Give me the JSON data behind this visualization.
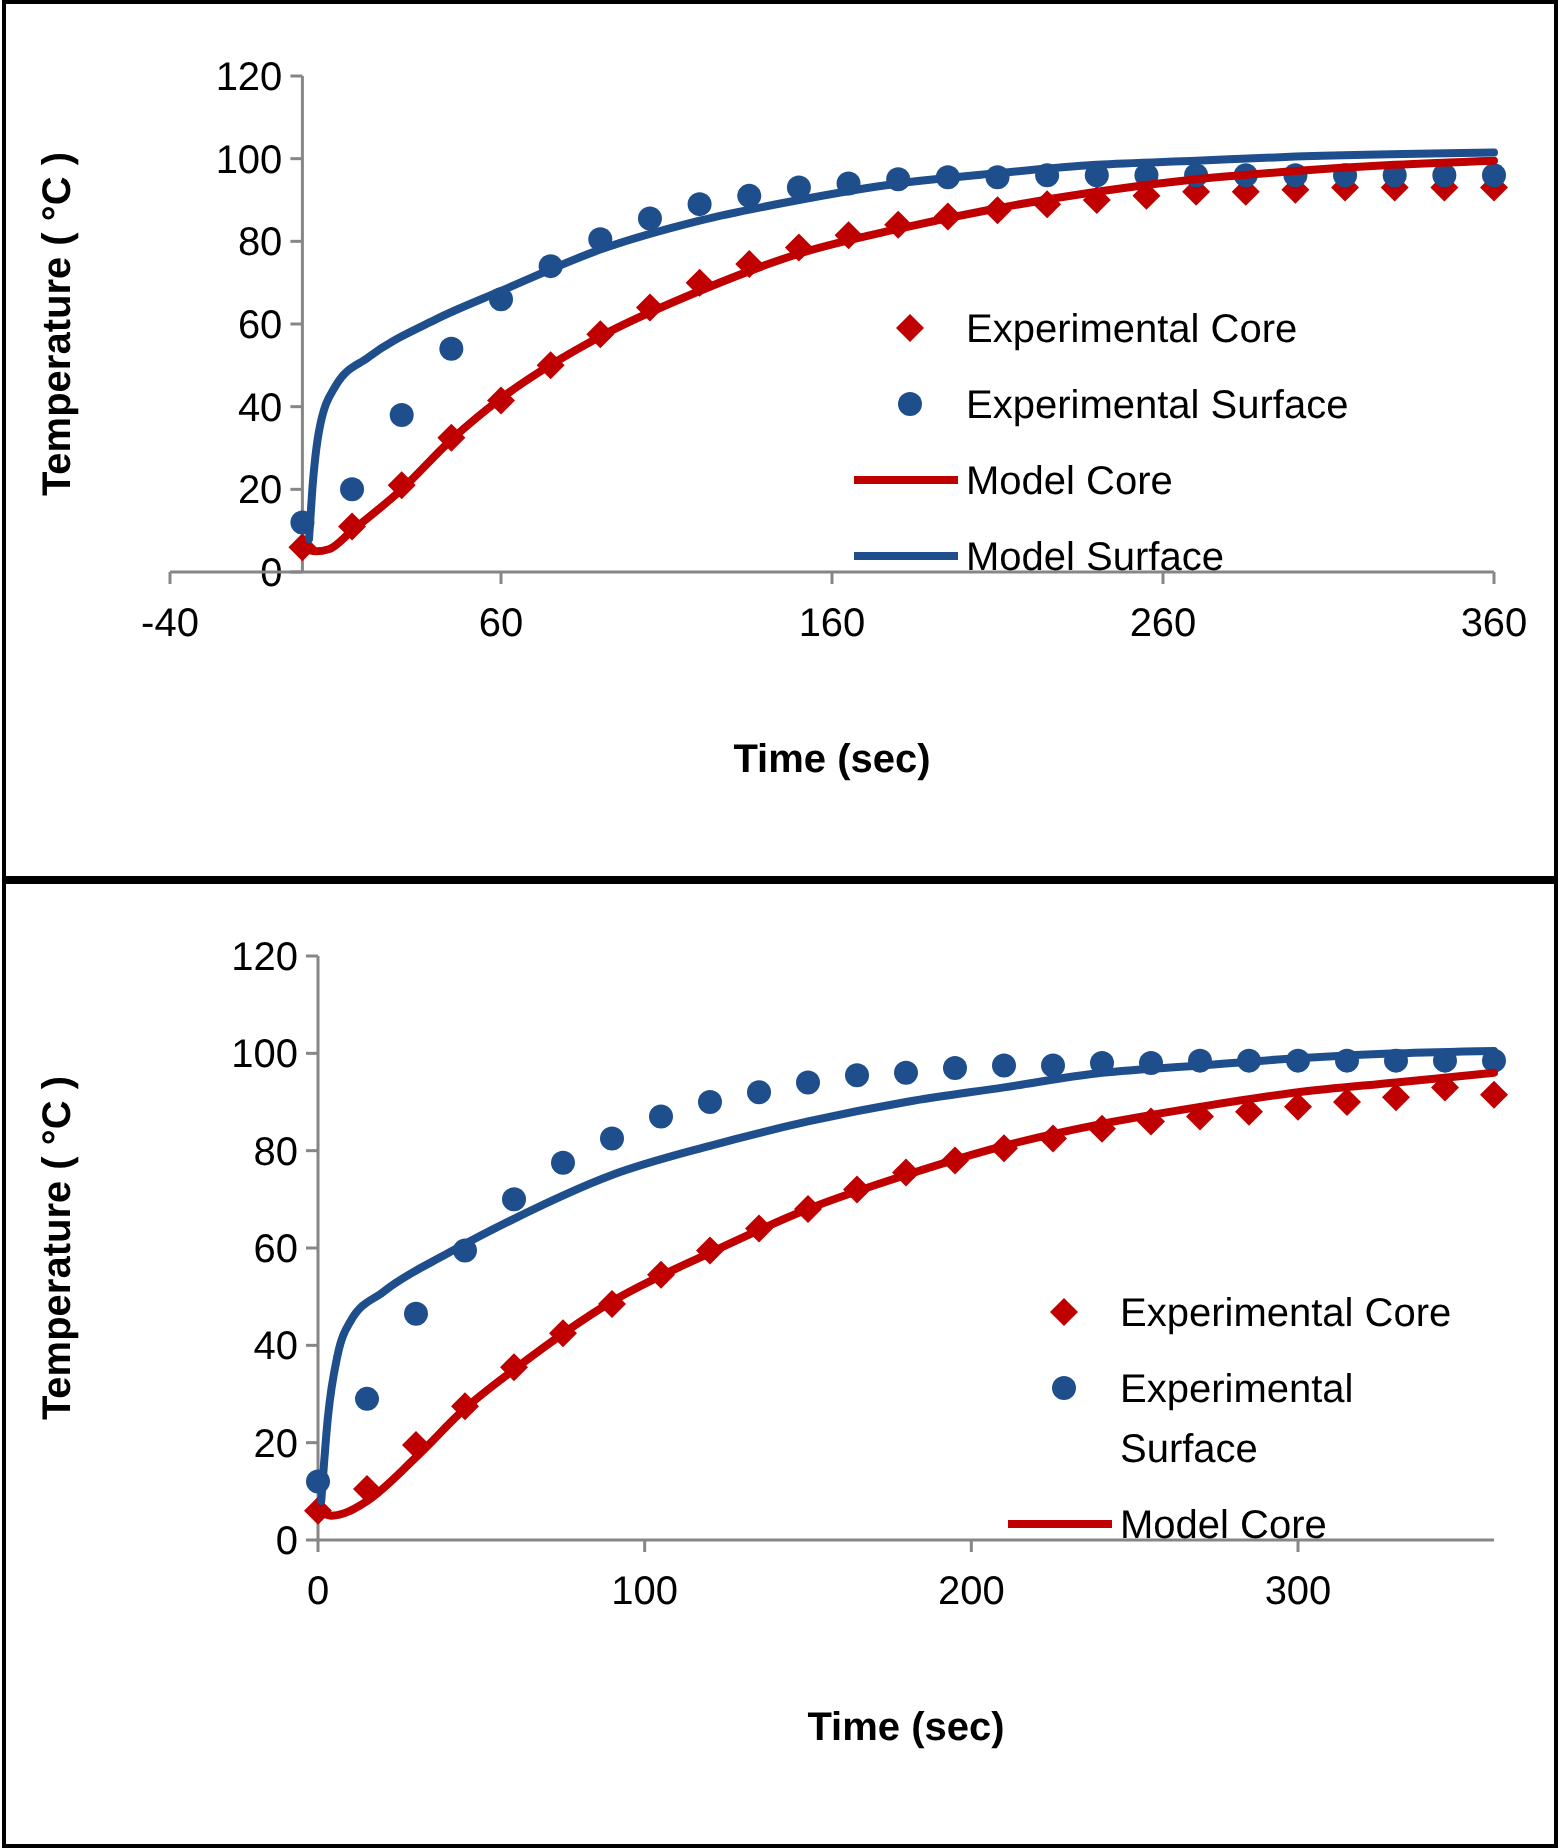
{
  "chart_data": [
    {
      "type": "scatter",
      "xlabel": "Time (sec)",
      "ylabel": "Temperature ( °C )",
      "xlim": [
        -40,
        360
      ],
      "xticks": [
        -40,
        60,
        160,
        260,
        360
      ],
      "ylim": [
        0,
        120
      ],
      "yticks": [
        0,
        20,
        40,
        60,
        80,
        100,
        120
      ],
      "grid": false,
      "legend": "bottom right",
      "series": [
        {
          "name": "Experimental Core",
          "marker": "diamond",
          "color": "#c00000",
          "x": [
            0,
            15,
            30,
            45,
            60,
            75,
            90,
            105,
            120,
            135,
            150,
            165,
            180,
            195,
            210,
            225,
            240,
            255,
            270,
            285,
            300,
            315,
            330,
            345,
            360
          ],
          "values": [
            6,
            11,
            21,
            32.5,
            41.5,
            50,
            57.5,
            64,
            70,
            74.5,
            78.5,
            81.5,
            84,
            86,
            87.5,
            89,
            90,
            91,
            92,
            92,
            92.5,
            93,
            93,
            93,
            93
          ]
        },
        {
          "name": "Experimental Surface",
          "marker": "circle",
          "color": "#1f4e8c",
          "x": [
            0,
            15,
            30,
            45,
            60,
            75,
            90,
            105,
            120,
            135,
            150,
            165,
            180,
            195,
            210,
            225,
            240,
            255,
            270,
            285,
            300,
            315,
            330,
            345,
            360
          ],
          "values": [
            12,
            20,
            38,
            54,
            66,
            74,
            80.5,
            85.5,
            89,
            91,
            93,
            94,
            95,
            95.5,
            95.5,
            96,
            96,
            96,
            96,
            96,
            96,
            96,
            96,
            96,
            96
          ]
        },
        {
          "name": "Model Core",
          "type": "line",
          "marker": "none",
          "color": "#c00000",
          "x": [
            0,
            4,
            8,
            15,
            30,
            45,
            60,
            90,
            120,
            150,
            180,
            210,
            240,
            270,
            300,
            330,
            360
          ],
          "values": [
            6,
            5,
            5.5,
            10,
            20,
            32,
            42,
            57,
            68,
            77,
            83,
            88,
            92,
            95,
            97,
            98.5,
            99.5
          ]
        },
        {
          "name": "Model Surface",
          "type": "line",
          "marker": "none",
          "color": "#1f4e8c",
          "x": [
            2,
            3,
            5,
            10,
            20,
            40,
            60,
            90,
            120,
            150,
            180,
            210,
            240,
            270,
            300,
            360
          ],
          "values": [
            8,
            20,
            34,
            45,
            52,
            61,
            68,
            78,
            85,
            90,
            94,
            96.5,
            98.5,
            99.5,
            100.5,
            101.5
          ]
        }
      ]
    },
    {
      "type": "scatter",
      "xlabel": "Time (sec)",
      "ylabel": "Temperature ( °C )",
      "xlim": [
        0,
        360
      ],
      "xticks": [
        0,
        100,
        200,
        300
      ],
      "ylim": [
        0,
        120
      ],
      "yticks": [
        0,
        20,
        40,
        60,
        80,
        100,
        120
      ],
      "grid": false,
      "legend": "bottom right",
      "series": [
        {
          "name": "Experimental Core",
          "marker": "diamond",
          "color": "#c00000",
          "x": [
            0,
            15,
            30,
            45,
            60,
            75,
            90,
            105,
            120,
            135,
            150,
            165,
            180,
            195,
            210,
            225,
            240,
            255,
            270,
            285,
            300,
            315,
            330,
            345,
            360
          ],
          "values": [
            6,
            10.5,
            19.5,
            27.5,
            35.5,
            42.5,
            48.5,
            54.5,
            59.5,
            64,
            68,
            72,
            75.5,
            78,
            80.5,
            82.5,
            84.5,
            86,
            87,
            88,
            89,
            90,
            91,
            93,
            91.5
          ]
        },
        {
          "name": "Experimental Surface",
          "marker": "circle",
          "color": "#1f4e8c",
          "x": [
            0,
            15,
            30,
            45,
            60,
            75,
            90,
            105,
            120,
            135,
            150,
            165,
            180,
            195,
            210,
            225,
            240,
            255,
            270,
            285,
            300,
            315,
            330,
            345,
            360
          ],
          "values": [
            12,
            29,
            46.5,
            59.5,
            70,
            77.5,
            82.5,
            87,
            90,
            92,
            94,
            95.5,
            96,
            97,
            97.5,
            97.5,
            98,
            98,
            98.5,
            98.5,
            98.5,
            98.5,
            98.5,
            98.5,
            98.5
          ]
        },
        {
          "name": "Model Core",
          "type": "line",
          "marker": "none",
          "color": "#c00000",
          "x": [
            0,
            4,
            8,
            15,
            30,
            45,
            60,
            90,
            120,
            150,
            180,
            210,
            240,
            270,
            300,
            330,
            360
          ],
          "values": [
            6,
            5,
            5.5,
            8,
            17,
            27,
            35,
            49,
            59,
            68,
            75,
            81,
            85.5,
            89,
            92,
            94,
            96
          ]
        },
        {
          "type": "line",
          "marker": "none",
          "color": "#1f4e8c",
          "x": [
            1,
            3,
            6,
            10,
            20,
            40,
            60,
            90,
            120,
            150,
            180,
            210,
            240,
            270,
            300,
            330,
            360
          ],
          "values": [
            8,
            25,
            38,
            45,
            51,
            59,
            66,
            75,
            81,
            86,
            90,
            93,
            96,
            97.5,
            99,
            100,
            100.5
          ]
        }
      ]
    }
  ]
}
